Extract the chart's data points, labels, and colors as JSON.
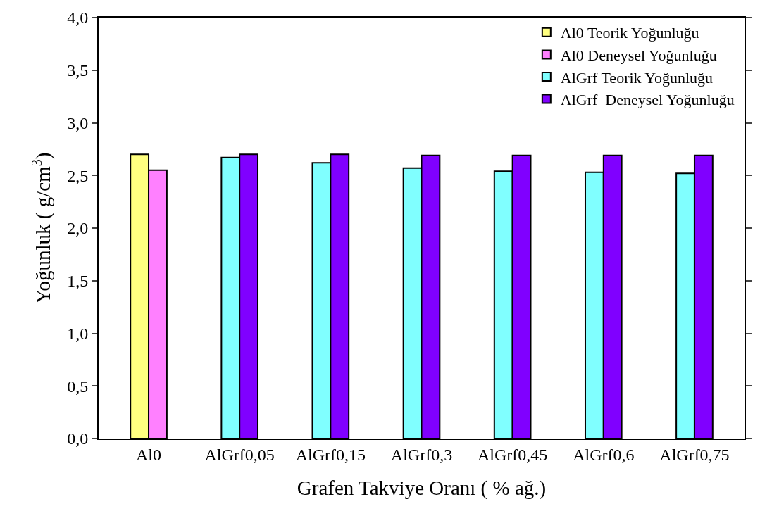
{
  "chart_data": {
    "type": "bar",
    "xlabel": "Grafen Takviye Oranı ( % ağ.)",
    "ylabel": "Yoğunluk ( g/cm$^{3}$)",
    "categories": [
      "Al0",
      "AlGrf0,05",
      "AlGrf0,15",
      "AlGrf0,3",
      "AlGrf0,45",
      "AlGrf0,6",
      "AlGrf0,75"
    ],
    "series": [
      {
        "name": "Al0 Teorik Yoğunluğu",
        "color": "#ffff80",
        "values": [
          2.7,
          null,
          null,
          null,
          null,
          null,
          null
        ]
      },
      {
        "name": "Al0 Deneysel Yoğunluğu",
        "color": "#ff80ff",
        "values": [
          2.55,
          null,
          null,
          null,
          null,
          null,
          null
        ]
      },
      {
        "name": "AlGrf Teorik Yoğunluğu",
        "color": "#80ffff",
        "values": [
          null,
          2.67,
          2.62,
          2.57,
          2.54,
          2.53,
          2.52
        ]
      },
      {
        "name": "AlGrf  Deneysel Yoğunluğu",
        "color": "#8000ff",
        "values": [
          null,
          2.7,
          2.7,
          2.69,
          2.69,
          2.69,
          2.69
        ]
      }
    ],
    "ylim": [
      0,
      4.0
    ],
    "yticks": [
      {
        "value": 0,
        "label": "0,0"
      },
      {
        "value": 0.5,
        "label": "0,5"
      },
      {
        "value": 1.0,
        "label": "1,0"
      },
      {
        "value": 1.5,
        "label": "1,5"
      },
      {
        "value": 2.0,
        "label": "2,0"
      },
      {
        "value": 2.5,
        "label": "2,5"
      },
      {
        "value": 3.0,
        "label": "3,0"
      },
      {
        "value": 3.5,
        "label": "3,5"
      },
      {
        "value": 4.0,
        "label": "4,0"
      }
    ],
    "legend": "top right"
  }
}
